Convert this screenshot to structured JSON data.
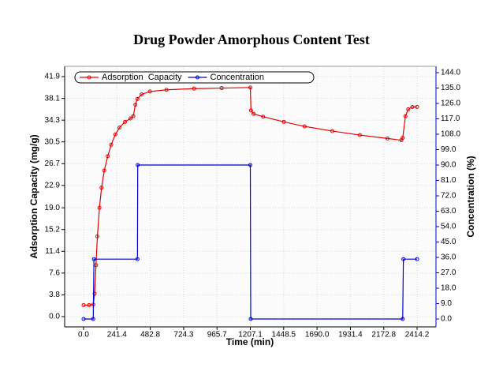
{
  "chart_data": {
    "type": "line",
    "title": "Drug Powder Amorphous Content Test",
    "x_label": "Time (min)",
    "y_label": "Adsorption Capacity (mg/g)",
    "y2_label": "Concentration (%)",
    "xlim": [
      -137,
      2551
    ],
    "xticks": [
      {
        "value": 0,
        "label": "0.0"
      },
      241.4,
      482.8,
      724.3,
      965.7,
      1207.1,
      1448.5,
      {
        "value": 1690,
        "label": "1690.0"
      },
      1931.4,
      2172.8,
      2414.2
    ],
    "ylim": [
      -1.8,
      43.7
    ],
    "yticks": [
      {
        "value": 0,
        "label": "0.0"
      },
      3.8,
      7.6,
      11.4,
      15.2,
      {
        "value": 19,
        "label": "19.0"
      },
      22.9,
      26.7,
      30.5,
      34.3,
      38.1,
      41.9
    ],
    "y2lim": [
      -4.6,
      147.7
    ],
    "y2ticks": [
      {
        "value": 0,
        "label": "0.0"
      },
      {
        "value": 9,
        "label": "9.0"
      },
      {
        "value": 18,
        "label": "18.0"
      },
      {
        "value": 27,
        "label": "27.0"
      },
      {
        "value": 36,
        "label": "36.0"
      },
      {
        "value": 45,
        "label": "45.0"
      },
      {
        "value": 54,
        "label": "54.0"
      },
      {
        "value": 63,
        "label": "63.0"
      },
      {
        "value": 72,
        "label": "72.0"
      },
      {
        "value": 81,
        "label": "81.0"
      },
      {
        "value": 90,
        "label": "90.0"
      },
      {
        "value": 99,
        "label": "99.0"
      },
      {
        "value": 108,
        "label": "108.0"
      },
      {
        "value": 117,
        "label": "117.0"
      },
      {
        "value": 126,
        "label": "126.0"
      },
      {
        "value": 135,
        "label": "135.0"
      },
      {
        "value": 144,
        "label": "144.0"
      }
    ],
    "grid": true,
    "legend": "top-left",
    "series": [
      {
        "name": "Adsorption  Capacity",
        "color": "#e00000",
        "x": [
          0,
          40,
          70,
          80,
          90,
          100,
          115,
          130,
          150,
          175,
          200,
          230,
          260,
          300,
          340,
          360,
          375,
          390,
          420,
          480,
          600,
          800,
          1000,
          1207,
          1212,
          1230,
          1300,
          1450,
          1600,
          1800,
          2000,
          2200,
          2300,
          2310,
          2330,
          2350,
          2380,
          2414
        ],
        "values": [
          2.0,
          2.0,
          2.1,
          4,
          9,
          14,
          19,
          22.5,
          25.5,
          28,
          30,
          31.8,
          33,
          34,
          34.6,
          35,
          37,
          38,
          38.8,
          39.3,
          39.6,
          39.8,
          39.9,
          40.0,
          36,
          35.4,
          34.9,
          34,
          33.2,
          32.4,
          31.7,
          31.1,
          30.8,
          31.2,
          35,
          36.2,
          36.6,
          36.6
        ]
      },
      {
        "name": "Concentration",
        "color": "#0000cc",
        "axis": "y2",
        "x": [
          0,
          70,
          75,
          390,
          392,
          1207,
          1210,
          2310,
          2315,
          2414
        ],
        "values": [
          0,
          0,
          35,
          35,
          90,
          90,
          0,
          0,
          35,
          35
        ]
      }
    ]
  }
}
